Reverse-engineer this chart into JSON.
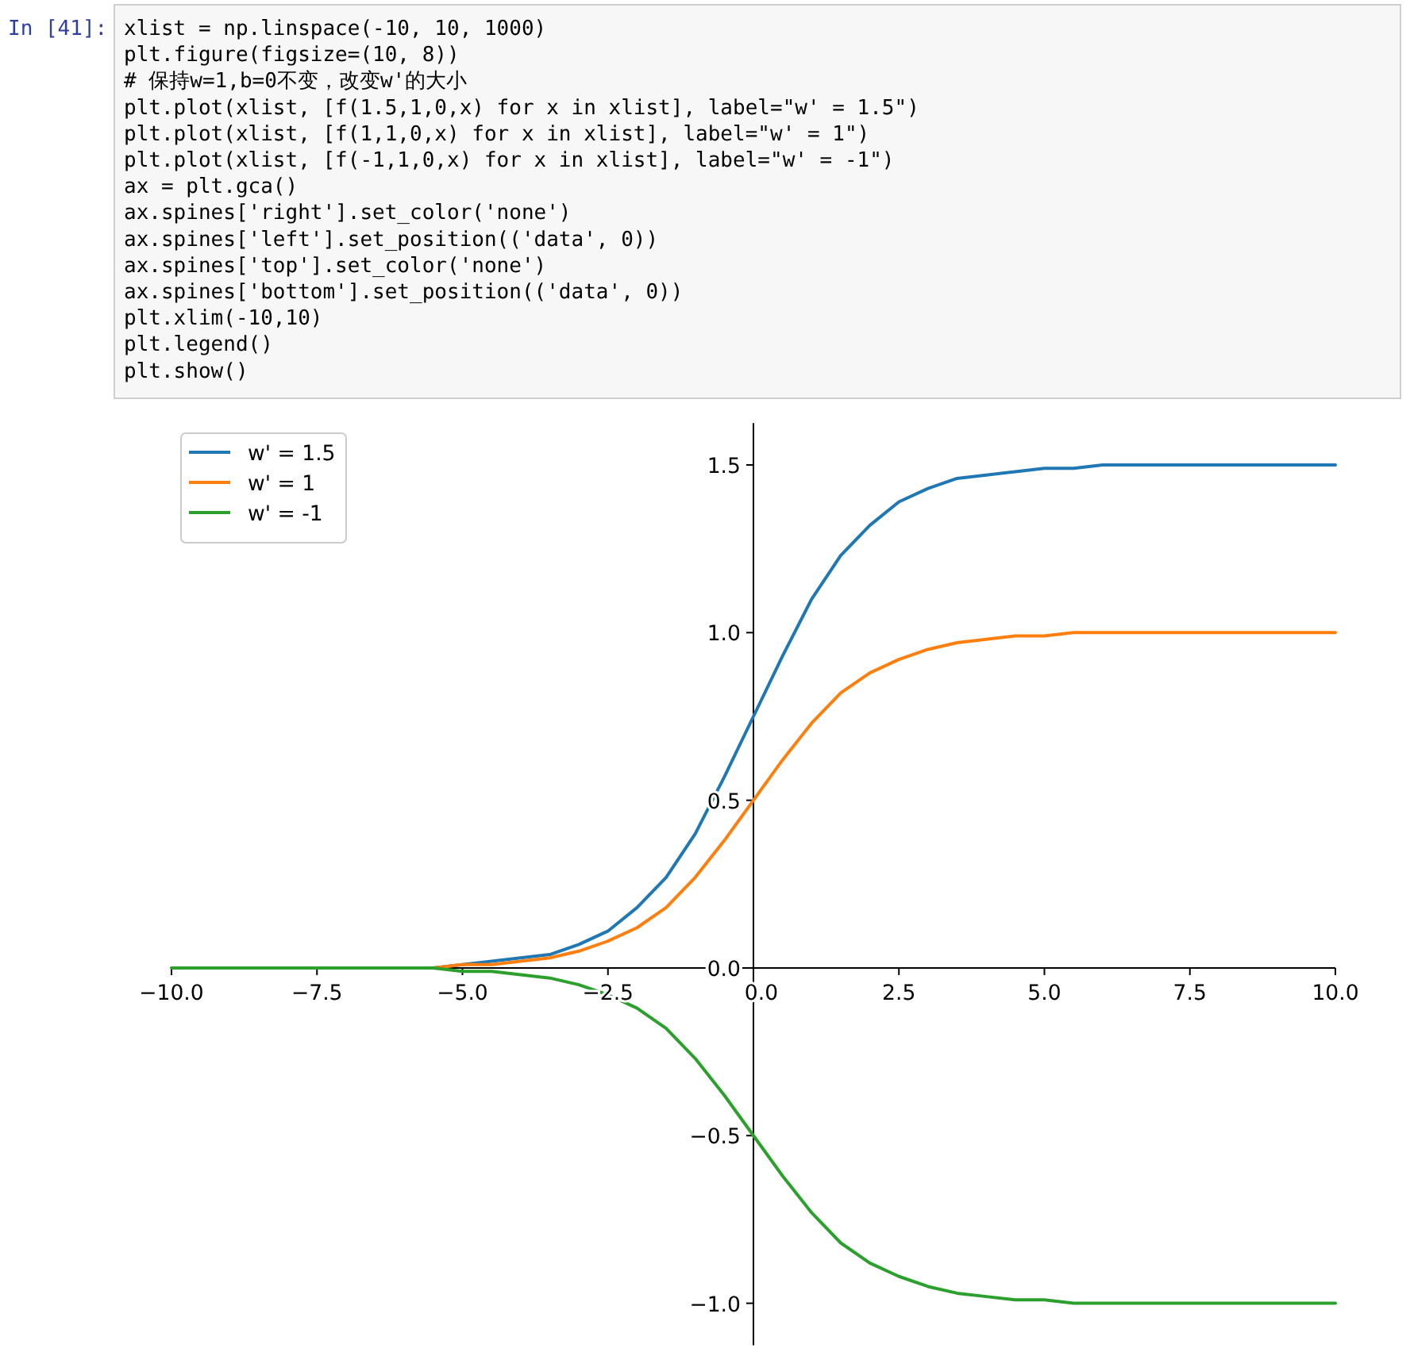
{
  "chart_data": {
    "type": "line",
    "annotations": [
      "In [41]:",
      "xlist = np.linspace(-10, 10, 1000)",
      "plt.figure(figsize=(10, 8))",
      "# 保持w=1,b=0不变，改变w'的大小",
      "plt.plot(xlist, [f(1.5,1,0,x) for x in xlist], label=\"w' = 1.5\")",
      "plt.plot(xlist, [f(1,1,0,x) for x in xlist], label=\"w' = 1\")",
      "plt.plot(xlist, [f(-1,1,0,x) for x in xlist], label=\"w' = -1\")",
      "ax = plt.gca()",
      "ax.spines['right'].set_color('none')",
      "ax.spines['left'].set_position(('data', 0))",
      "ax.spines['top'].set_color('none')",
      "ax.spines['bottom'].set_position(('data', 0))",
      "plt.xlim(-10,10)",
      "plt.legend()",
      "plt.show()"
    ],
    "x": [
      -10,
      -9.5,
      -9,
      -8.5,
      -8,
      -7.5,
      -7,
      -6.5,
      -6,
      -5.5,
      -5,
      -4.5,
      -4,
      -3.5,
      -3,
      -2.5,
      -2,
      -1.5,
      -1,
      -0.5,
      0,
      0.5,
      1,
      1.5,
      2,
      2.5,
      3,
      3.5,
      4,
      4.5,
      5,
      5.5,
      6,
      6.5,
      7,
      7.5,
      8,
      8.5,
      9,
      9.5,
      10
    ],
    "series": [
      {
        "name": "w' = 1.5",
        "color": "#1f77b4",
        "values": [
          null,
          null,
          null,
          null,
          null,
          null,
          null,
          null,
          null,
          0,
          0.01,
          0.02,
          0.03,
          0.04,
          0.07,
          0.11,
          0.18,
          0.27,
          0.4,
          0.57,
          0.75,
          0.93,
          1.1,
          1.23,
          1.32,
          1.39,
          1.43,
          1.46,
          1.47,
          1.48,
          1.49,
          1.49,
          1.5,
          1.5,
          1.5,
          1.5,
          1.5,
          1.5,
          1.5,
          1.5,
          1.5
        ]
      },
      {
        "name": "w' = 1",
        "color": "#ff7f0e",
        "values": [
          null,
          null,
          null,
          null,
          null,
          null,
          null,
          null,
          0,
          0,
          0.01,
          0.01,
          0.02,
          0.03,
          0.05,
          0.08,
          0.12,
          0.18,
          0.27,
          0.38,
          0.5,
          0.62,
          0.73,
          0.82,
          0.88,
          0.92,
          0.95,
          0.97,
          0.98,
          0.99,
          0.99,
          1,
          1,
          1,
          1,
          1,
          1,
          1,
          1,
          1,
          1
        ]
      },
      {
        "name": "w' = -1",
        "color": "#2ca02c",
        "values": [
          0,
          0,
          0,
          0,
          0,
          0,
          0,
          0,
          0,
          0,
          -0.01,
          -0.01,
          -0.02,
          -0.03,
          -0.05,
          -0.08,
          -0.12,
          -0.18,
          -0.27,
          -0.38,
          -0.5,
          -0.62,
          -0.73,
          -0.82,
          -0.88,
          -0.92,
          -0.95,
          -0.97,
          -0.98,
          -0.99,
          -0.99,
          -1,
          -1,
          -1,
          -1,
          -1,
          -1,
          -1,
          -1,
          -1,
          -1
        ]
      }
    ],
    "xlim": [
      -10,
      10
    ],
    "ylim": [
      -1.125,
      1.625
    ],
    "xticks": [
      {
        "value": -10,
        "label": "−10.0"
      },
      {
        "value": -7.5,
        "label": "−7.5"
      },
      {
        "value": -5,
        "label": "−5.0"
      },
      {
        "value": -2.5,
        "label": "−2.5"
      },
      {
        "value": 0,
        "label": "0.0"
      },
      {
        "value": 2.5,
        "label": "2.5"
      },
      {
        "value": 5,
        "label": "5.0"
      },
      {
        "value": 7.5,
        "label": "7.5"
      },
      {
        "value": 10,
        "label": "10.0"
      }
    ],
    "yticks": [
      {
        "value": -1,
        "label": "−1.0"
      },
      {
        "value": -0.5,
        "label": "−0.5"
      },
      {
        "value": 0,
        "label": "0.0"
      },
      {
        "value": 0.5,
        "label": "0.5"
      },
      {
        "value": 1,
        "label": "1.0"
      },
      {
        "value": 1.5,
        "label": "1.5"
      }
    ],
    "legend": "top left"
  }
}
